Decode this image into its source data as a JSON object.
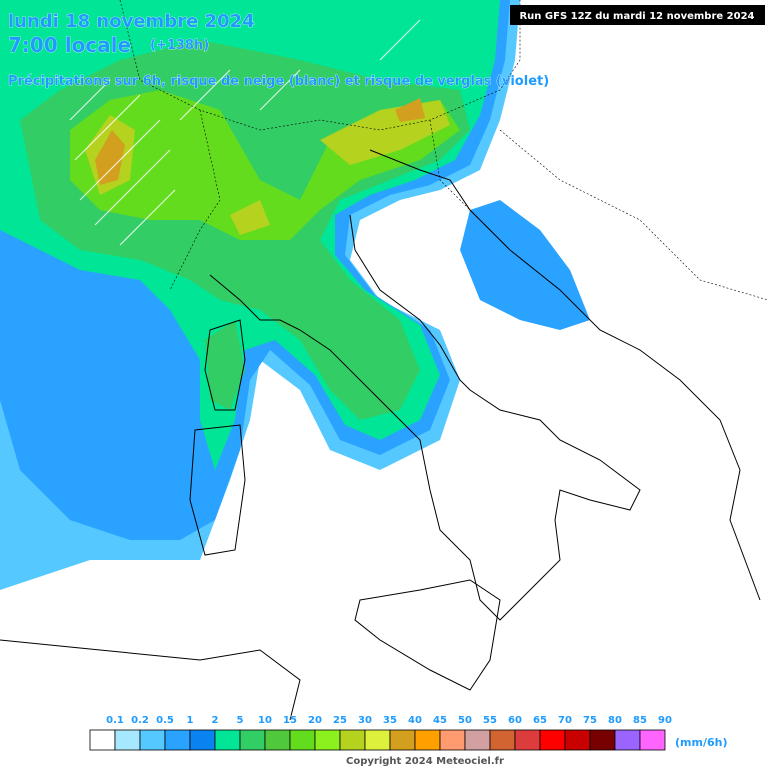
{
  "header": {
    "date": "lundi 18 novembre 2024",
    "time": "7:00 locale",
    "lead": "(+138h)",
    "subtitle": "Précipitations sur 6h, risque de neige (blanc) et risque de verglas (violet)",
    "run": "Run GFS 12Z du mardi 12 novembre 2024"
  },
  "legend": {
    "unit": "(mm/6h)",
    "items": [
      {
        "label": "0.1",
        "color": "#ffffff"
      },
      {
        "label": "0.2",
        "color": "#a6e8ff"
      },
      {
        "label": "0.5",
        "color": "#55c8ff"
      },
      {
        "label": "1",
        "color": "#2aa2ff"
      },
      {
        "label": "2",
        "color": "#0a82f0"
      },
      {
        "label": "5",
        "color": "#00e696"
      },
      {
        "label": "10",
        "color": "#32cd64"
      },
      {
        "label": "15",
        "color": "#50c83c"
      },
      {
        "label": "20",
        "color": "#64dc1e"
      },
      {
        "label": "25",
        "color": "#8cf01e"
      },
      {
        "label": "30",
        "color": "#b4d21e"
      },
      {
        "label": "35",
        "color": "#dcf03c"
      },
      {
        "label": "40",
        "color": "#d2a01e"
      },
      {
        "label": "45",
        "color": "#ffa000"
      },
      {
        "label": "50",
        "color": "#ff9b6e"
      },
      {
        "label": "55",
        "color": "#d2a0a0"
      },
      {
        "label": "60",
        "color": "#d26432"
      },
      {
        "label": "65",
        "color": "#dc3c3c"
      },
      {
        "label": "70",
        "color": "#ff0000"
      },
      {
        "label": "75",
        "color": "#c80000"
      },
      {
        "label": "80",
        "color": "#780000"
      },
      {
        "label": "85",
        "color": "#9b64ff"
      },
      {
        "label": "90",
        "color": "#ff64ff"
      }
    ]
  },
  "footer": {
    "copyright": "Copyright 2024 Meteociel.fr"
  }
}
